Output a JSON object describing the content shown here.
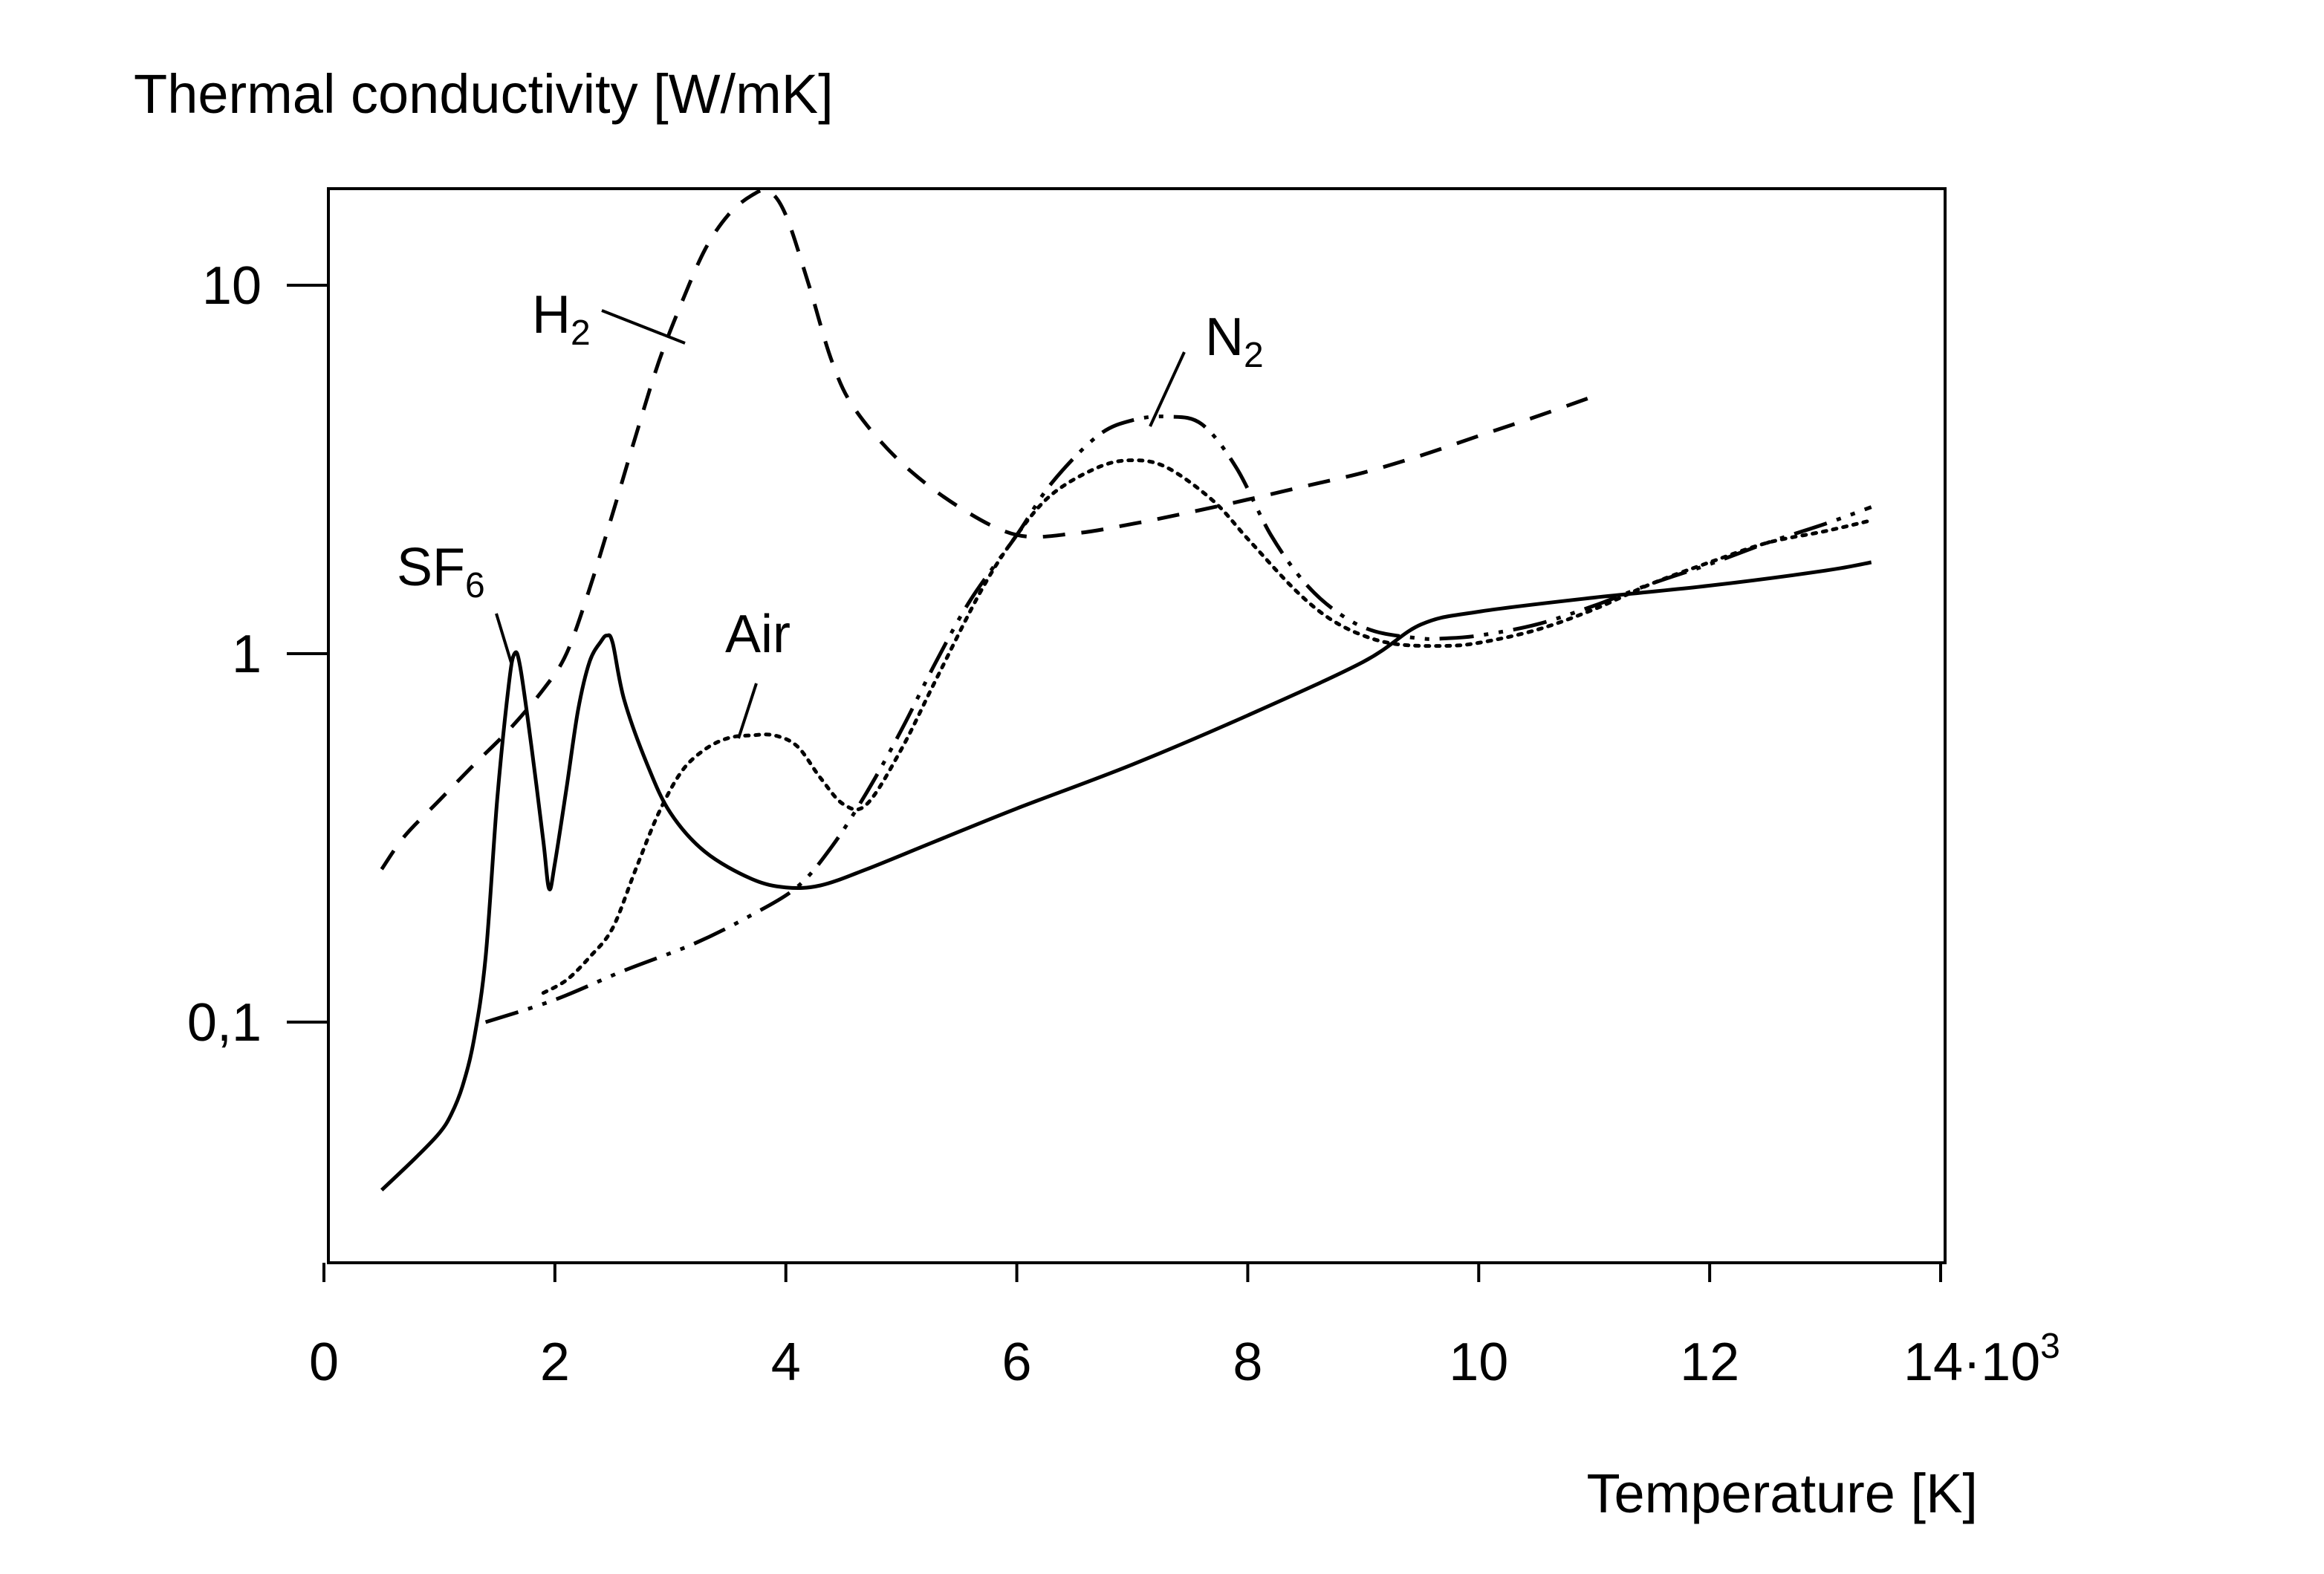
{
  "chart_data": {
    "type": "line",
    "ylabel": "Thermal conductivity [W/mK]",
    "xlabel": "Temperature [K]",
    "x_scale": "linear",
    "y_scale": "log",
    "x_ticks": [
      {
        "value": 0,
        "label": "0"
      },
      {
        "value": 2000,
        "label": "2"
      },
      {
        "value": 4000,
        "label": "4"
      },
      {
        "value": 6000,
        "label": "6"
      },
      {
        "value": 8000,
        "label": "8"
      },
      {
        "value": 10000,
        "label": "10"
      },
      {
        "value": 12000,
        "label": "12"
      },
      {
        "value": 14000,
        "label": "14·10"
      }
    ],
    "x_exponent": "3",
    "y_ticks": [
      {
        "value": 0.1,
        "label": "0,1"
      },
      {
        "value": 1,
        "label": "1"
      },
      {
        "value": 10,
        "label": "10"
      }
    ],
    "xlim": [
      0,
      14000
    ],
    "ylim": [
      0.02,
      22
    ],
    "grid": false,
    "series": [
      {
        "name": "SF6",
        "label_main": "SF",
        "label_sub": "6",
        "style": "solid",
        "color": "#000000",
        "x": [
          500,
          800,
          1000,
          1100,
          1200,
          1300,
          1400,
          1500,
          1600,
          1650,
          1700,
          1800,
          1900,
          1950,
          2000,
          2100,
          2200,
          2300,
          2400,
          2450,
          2500,
          2600,
          2800,
          3000,
          3300,
          3700,
          4000,
          4300,
          4700,
          5300,
          6000,
          7000,
          8000,
          9000,
          9500,
          10000,
          11000,
          12000,
          13000,
          13400
        ],
        "y": [
          0.035,
          0.043,
          0.05,
          0.056,
          0.067,
          0.09,
          0.15,
          0.4,
          0.82,
          1.0,
          0.92,
          0.55,
          0.31,
          0.23,
          0.27,
          0.43,
          0.7,
          0.95,
          1.08,
          1.12,
          1.07,
          0.75,
          0.5,
          0.37,
          0.29,
          0.245,
          0.232,
          0.235,
          0.26,
          0.31,
          0.38,
          0.5,
          0.68,
          0.95,
          1.2,
          1.3,
          1.42,
          1.53,
          1.68,
          1.77
        ]
      },
      {
        "name": "H2",
        "label_main": "H",
        "label_sub": "2",
        "style": "dashed",
        "color": "#000000",
        "x": [
          500,
          700,
          1000,
          1300,
          1600,
          1900,
          2100,
          2300,
          2500,
          2700,
          2900,
          3100,
          3300,
          3500,
          3700,
          3850,
          4000,
          4200,
          4400,
          4600,
          5000,
          5500,
          6000,
          6500,
          7000,
          7500,
          8000,
          8500,
          9000,
          9500,
          10000,
          10500,
          11000
        ],
        "y": [
          0.26,
          0.32,
          0.4,
          0.5,
          0.62,
          0.8,
          1.0,
          1.5,
          2.4,
          3.9,
          6.2,
          9.0,
          12.5,
          15.5,
          17.5,
          18.0,
          15.5,
          10.0,
          6.2,
          4.6,
          3.3,
          2.5,
          2.1,
          2.12,
          2.25,
          2.42,
          2.62,
          2.85,
          3.1,
          3.45,
          3.9,
          4.4,
          5.0
        ]
      },
      {
        "name": "Air",
        "label_main": "Air",
        "label_sub": "",
        "style": "dotted",
        "color": "#000000",
        "x": [
          1900,
          2100,
          2300,
          2500,
          2700,
          2900,
          3100,
          3300,
          3500,
          3700,
          3900,
          4100,
          4300,
          4500,
          4700,
          5000,
          5300,
          5700,
          6000,
          6300,
          6700,
          7000,
          7300,
          7700,
          8000,
          8400,
          8700,
          9000,
          9300,
          9700,
          10000,
          10500,
          11000,
          11500,
          12000,
          12500,
          13000,
          13400
        ],
        "y": [
          0.12,
          0.13,
          0.15,
          0.18,
          0.26,
          0.37,
          0.48,
          0.55,
          0.59,
          0.6,
          0.6,
          0.56,
          0.46,
          0.39,
          0.39,
          0.55,
          0.85,
          1.5,
          2.1,
          2.7,
          3.2,
          3.35,
          3.2,
          2.6,
          2.05,
          1.5,
          1.25,
          1.12,
          1.06,
          1.05,
          1.07,
          1.16,
          1.32,
          1.55,
          1.77,
          2.0,
          2.15,
          2.3
        ]
      },
      {
        "name": "N2",
        "label_main": "N",
        "label_sub": "2",
        "style": "dash-dot-dot",
        "color": "#000000",
        "x": [
          1400,
          2000,
          2600,
          3200,
          3700,
          4100,
          4400,
          4700,
          5000,
          5300,
          5600,
          6000,
          6300,
          6700,
          7000,
          7300,
          7600,
          7900,
          8200,
          8500,
          8800,
          9100,
          9500,
          9700,
          10000,
          10500,
          11000,
          11500,
          12000,
          12500,
          13000,
          13400
        ],
        "y": [
          0.1,
          0.115,
          0.138,
          0.163,
          0.195,
          0.233,
          0.3,
          0.42,
          0.62,
          0.95,
          1.4,
          2.1,
          2.9,
          3.9,
          4.3,
          4.4,
          4.2,
          3.2,
          2.1,
          1.55,
          1.28,
          1.15,
          1.1,
          1.1,
          1.12,
          1.2,
          1.35,
          1.55,
          1.75,
          2.0,
          2.25,
          2.5
        ]
      }
    ]
  }
}
